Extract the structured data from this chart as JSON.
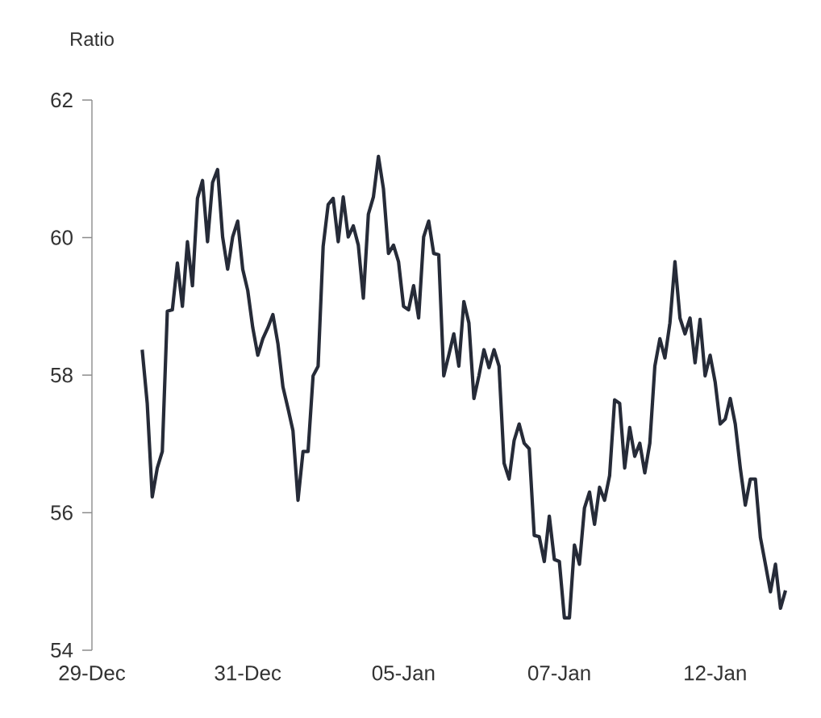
{
  "chart_data": {
    "type": "line",
    "ylabel": "Ratio",
    "color": "#262b38",
    "ylim": [
      54,
      62
    ],
    "yticks": [
      54,
      56,
      58,
      60,
      62
    ],
    "categories": [
      "29-Dec",
      null,
      null,
      null,
      null,
      null,
      null,
      null,
      null,
      null,
      null,
      null,
      null,
      null,
      null,
      null,
      null,
      null,
      null,
      null,
      null,
      null,
      null,
      null,
      null,
      null,
      null,
      null,
      null,
      null,
      null,
      "31-Dec",
      null,
      null,
      null,
      null,
      null,
      null,
      null,
      null,
      null,
      null,
      null,
      null,
      null,
      null,
      null,
      null,
      null,
      null,
      null,
      null,
      null,
      null,
      null,
      null,
      null,
      null,
      null,
      null,
      null,
      null,
      "05-Jan",
      null,
      null,
      null,
      null,
      null,
      null,
      null,
      null,
      null,
      null,
      null,
      null,
      null,
      null,
      null,
      null,
      null,
      null,
      null,
      null,
      null,
      null,
      null,
      null,
      null,
      null,
      null,
      null,
      null,
      null,
      "07-Jan",
      null,
      null,
      null,
      null,
      null,
      null,
      null,
      null,
      null,
      null,
      null,
      null,
      null,
      null,
      null,
      null,
      null,
      null,
      null,
      null,
      null,
      null,
      null,
      null,
      null,
      null,
      null,
      null,
      null,
      null,
      "12-Jan",
      null,
      null,
      null,
      null,
      null,
      null,
      null,
      null,
      null,
      null,
      null,
      null,
      null,
      null
    ],
    "values": [
      null,
      null,
      null,
      null,
      null,
      null,
      null,
      null,
      null,
      null,
      58.37,
      57.59,
      56.23,
      56.65,
      56.89,
      58.93,
      58.95,
      59.63,
      59.0,
      59.94,
      59.3,
      60.57,
      60.83,
      59.94,
      60.8,
      60.99,
      60.01,
      59.54,
      60.01,
      60.24,
      59.54,
      59.23,
      58.69,
      58.29,
      58.53,
      58.69,
      58.88,
      58.46,
      57.83,
      57.52,
      57.19,
      56.18,
      56.89,
      56.89,
      57.99,
      58.13,
      59.87,
      60.48,
      60.57,
      59.94,
      60.59,
      60.01,
      60.17,
      59.89,
      59.12,
      60.34,
      60.59,
      61.18,
      60.71,
      59.77,
      59.89,
      59.65,
      59.0,
      58.95,
      59.3,
      58.83,
      60.01,
      60.24,
      59.77,
      59.75,
      57.99,
      58.29,
      58.6,
      58.13,
      59.07,
      58.76,
      57.66,
      57.99,
      58.37,
      58.11,
      58.37,
      58.13,
      56.72,
      56.49,
      57.05,
      57.29,
      57.01,
      56.93,
      55.67,
      55.65,
      55.29,
      55.95,
      55.32,
      55.29,
      54.47,
      54.47,
      55.53,
      55.25,
      56.07,
      56.3,
      55.83,
      56.37,
      56.18,
      56.54,
      57.64,
      57.59,
      56.65,
      57.24,
      56.82,
      57.01,
      56.58,
      57.01,
      58.13,
      58.53,
      58.25,
      58.76,
      59.65,
      58.83,
      58.6,
      58.83,
      58.18,
      58.81,
      57.99,
      58.29,
      57.9,
      57.29,
      57.36,
      57.66,
      57.29,
      56.65,
      56.11,
      56.49,
      56.49,
      55.64,
      55.25,
      54.85,
      55.25,
      54.61,
      54.87
    ]
  }
}
